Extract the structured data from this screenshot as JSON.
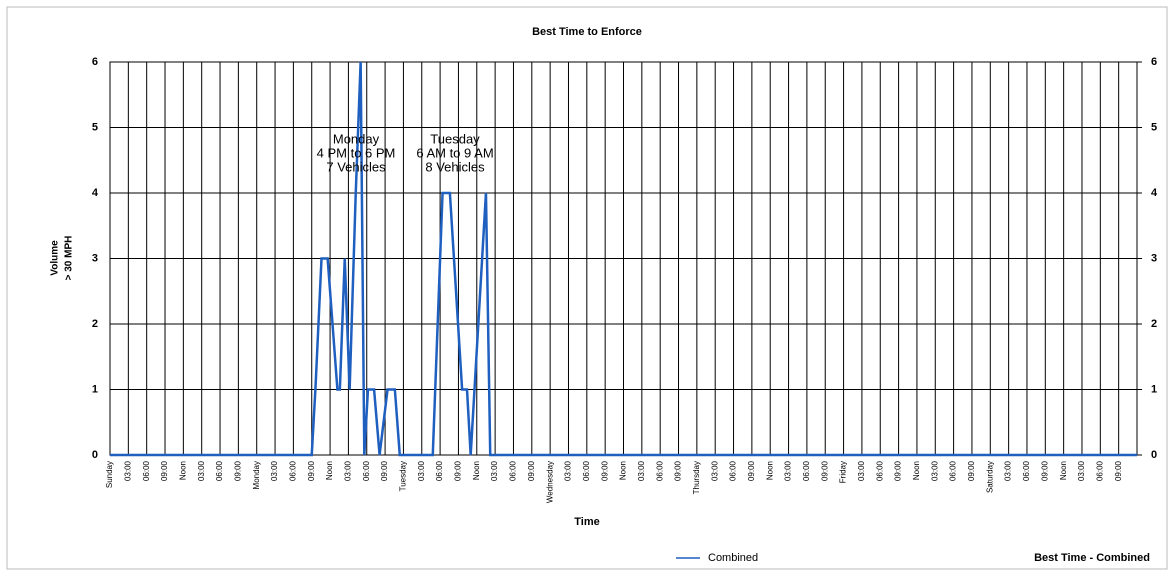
{
  "chart_data": {
    "type": "line",
    "title": "Best Time to Enforce",
    "x_label": "Time",
    "y_label": [
      "Volume",
      "> 30 MPH"
    ],
    "footer_label": "Best Time - Combined",
    "xlim": [
      0,
      168
    ],
    "ylim": [
      0,
      6
    ],
    "y2lim": [
      0,
      6
    ],
    "yticks": [
      0,
      1,
      2,
      3,
      4,
      5,
      6
    ],
    "y2ticks": [
      0,
      1,
      2,
      3,
      4,
      5,
      6
    ],
    "grid": true,
    "xticks": [
      {
        "value": 0,
        "label": "Sunday"
      },
      {
        "value": 3,
        "label": "03:00"
      },
      {
        "value": 6,
        "label": "06:00"
      },
      {
        "value": 9,
        "label": "09:00"
      },
      {
        "value": 12,
        "label": "Noon"
      },
      {
        "value": 15,
        "label": "03:00"
      },
      {
        "value": 18,
        "label": "06:00"
      },
      {
        "value": 21,
        "label": "09:00"
      },
      {
        "value": 24,
        "label": "Monday"
      },
      {
        "value": 27,
        "label": "03:00"
      },
      {
        "value": 30,
        "label": "06:00"
      },
      {
        "value": 33,
        "label": "09:00"
      },
      {
        "value": 36,
        "label": "Noon"
      },
      {
        "value": 39,
        "label": "03:00"
      },
      {
        "value": 42,
        "label": "06:00"
      },
      {
        "value": 45,
        "label": "09:00"
      },
      {
        "value": 48,
        "label": "Tuesday"
      },
      {
        "value": 51,
        "label": "03:00"
      },
      {
        "value": 54,
        "label": "06:00"
      },
      {
        "value": 57,
        "label": "09:00"
      },
      {
        "value": 60,
        "label": "Noon"
      },
      {
        "value": 63,
        "label": "03:00"
      },
      {
        "value": 66,
        "label": "06:00"
      },
      {
        "value": 69,
        "label": "09:00"
      },
      {
        "value": 72,
        "label": "Wednesday"
      },
      {
        "value": 75,
        "label": "03:00"
      },
      {
        "value": 78,
        "label": "06:00"
      },
      {
        "value": 81,
        "label": "09:00"
      },
      {
        "value": 84,
        "label": "Noon"
      },
      {
        "value": 87,
        "label": "03:00"
      },
      {
        "value": 90,
        "label": "06:00"
      },
      {
        "value": 93,
        "label": "09:00"
      },
      {
        "value": 96,
        "label": "Thursday"
      },
      {
        "value": 99,
        "label": "03:00"
      },
      {
        "value": 102,
        "label": "06:00"
      },
      {
        "value": 105,
        "label": "09:00"
      },
      {
        "value": 108,
        "label": "Noon"
      },
      {
        "value": 111,
        "label": "03:00"
      },
      {
        "value": 114,
        "label": "06:00"
      },
      {
        "value": 117,
        "label": "09:00"
      },
      {
        "value": 120,
        "label": "Friday"
      },
      {
        "value": 123,
        "label": "03:00"
      },
      {
        "value": 126,
        "label": "06:00"
      },
      {
        "value": 129,
        "label": "09:00"
      },
      {
        "value": 132,
        "label": "Noon"
      },
      {
        "value": 135,
        "label": "03:00"
      },
      {
        "value": 138,
        "label": "06:00"
      },
      {
        "value": 141,
        "label": "09:00"
      },
      {
        "value": 144,
        "label": "Saturday"
      },
      {
        "value": 147,
        "label": "03:00"
      },
      {
        "value": 150,
        "label": "06:00"
      },
      {
        "value": 153,
        "label": "09:00"
      },
      {
        "value": 156,
        "label": "Noon"
      },
      {
        "value": 159,
        "label": "03:00"
      },
      {
        "value": 162,
        "label": "06:00"
      },
      {
        "value": 165,
        "label": "09:00"
      }
    ],
    "x": [
      0,
      33,
      33.6,
      34.6,
      35.6,
      37.2,
      37.6,
      38.4,
      39.2,
      40.2,
      41,
      41.6,
      42.2,
      43.2,
      44.1,
      45.4,
      46.6,
      47.4,
      52.8,
      54.4,
      55.6,
      57.6,
      58.4,
      59,
      61.5,
      62.2,
      168
    ],
    "series": [
      {
        "name": "Combined",
        "color": "#1f5fbf",
        "values": [
          0,
          0,
          1,
          3,
          3,
          1,
          1,
          3,
          1,
          4,
          6,
          0,
          1,
          1,
          0,
          1,
          1,
          0,
          0,
          4,
          4,
          1,
          1,
          0,
          4,
          0,
          0
        ]
      }
    ],
    "annotations": [
      {
        "lines": [
          "Monday",
          "4 PM to 6 PM",
          "7 Vehicles"
        ]
      },
      {
        "lines": [
          "Tuesday",
          "6 AM to 9 AM",
          "8 Vehicles"
        ]
      }
    ]
  }
}
